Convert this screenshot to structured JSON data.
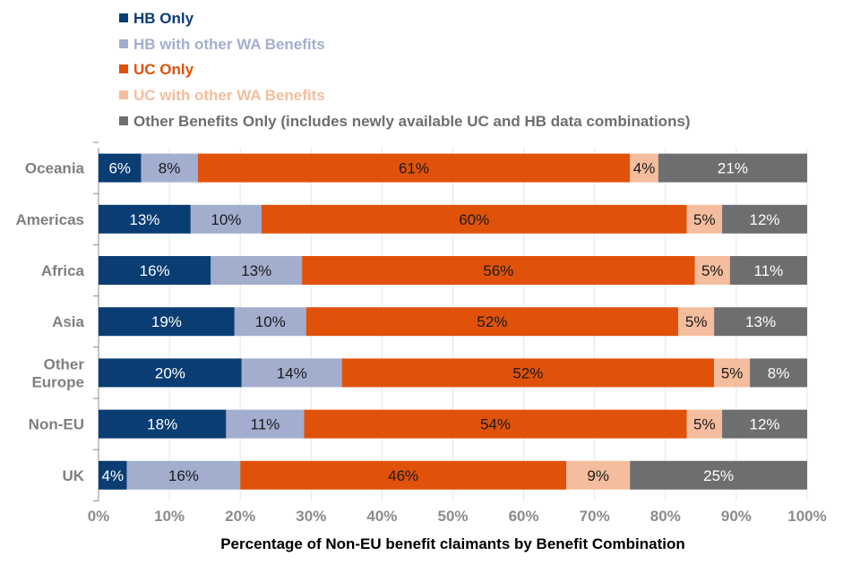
{
  "chart_data": {
    "type": "bar",
    "orientation": "horizontal-stacked-100",
    "xlabel": "Percentage of Non-EU benefit claimants by Benefit Combination",
    "xlim": [
      0,
      100
    ],
    "xticks": [
      "0%",
      "10%",
      "20%",
      "30%",
      "40%",
      "50%",
      "60%",
      "70%",
      "80%",
      "90%",
      "100%"
    ],
    "categories": [
      "Oceania",
      "Americas",
      "Africa",
      "Asia",
      "Other Europe",
      "Non-EU",
      "UK"
    ],
    "legend_position": "top",
    "series": [
      {
        "name": "HB Only",
        "color": "#0a3d73",
        "label_color": "#ffffff",
        "values": [
          6,
          13,
          16,
          19,
          20,
          18,
          4
        ]
      },
      {
        "name": "HB with other WA Benefits",
        "color": "#a3aecf",
        "label_color": "#1a1a1a",
        "values": [
          8,
          10,
          13,
          10,
          14,
          11,
          16
        ]
      },
      {
        "name": "UC Only",
        "color": "#e0520a",
        "label_color": "#1a1a1a",
        "values": [
          61,
          60,
          56,
          52,
          52,
          54,
          46
        ]
      },
      {
        "name": "UC with other WA Benefits",
        "color": "#f4bd9e",
        "label_color": "#1a1a1a",
        "values": [
          4,
          5,
          5,
          5,
          5,
          5,
          9
        ]
      },
      {
        "name": "Other Benefits Only (includes newly available UC and HB data combinations)",
        "color": "#6d6e70",
        "label_color": "#ffffff",
        "values": [
          21,
          12,
          11,
          13,
          8,
          12,
          25
        ]
      }
    ]
  }
}
